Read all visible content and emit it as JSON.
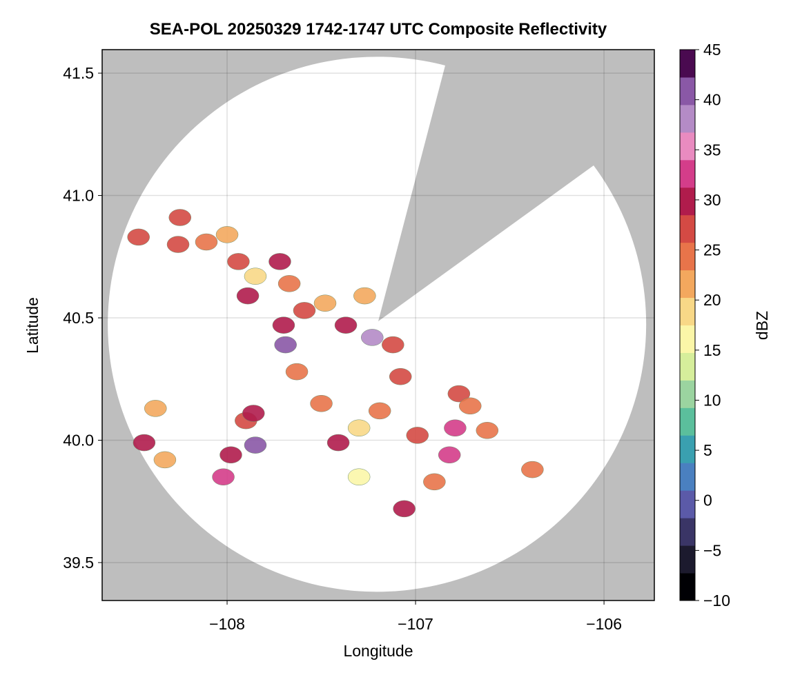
{
  "chart_data": {
    "type": "radar",
    "title": "SEA-POL 20250329 1742-1747 UTC Composite Reflectivity",
    "x_label": "Longitude",
    "y_label": "Latitude",
    "colorbar_label": "dBZ",
    "xlim": [
      -108.663,
      -105.733
    ],
    "ylim": [
      39.345,
      41.596
    ],
    "xticks": [
      {
        "value": -108,
        "label": "−108"
      },
      {
        "value": -107,
        "label": "−107"
      },
      {
        "value": -106,
        "label": "−106"
      }
    ],
    "yticks": [
      39.5,
      {
        "value": 40,
        "label": "40.0"
      },
      40.5,
      {
        "value": 41,
        "label": "41.0"
      },
      41.5
    ],
    "clim": [
      -10,
      45
    ],
    "cticks": [
      {
        "value": -10,
        "label": "−10"
      },
      {
        "value": -5,
        "label": "−5"
      },
      0,
      5,
      10,
      15,
      20,
      25,
      30,
      35,
      40,
      45
    ],
    "grid": true,
    "background": "#bebebe",
    "coverage_color": "#ffffff",
    "colormap": [
      "#000004",
      "#1c1a2e",
      "#3a3566",
      "#5b5aa8",
      "#4a80c0",
      "#3aa0b0",
      "#5bbf9c",
      "#9bd4a0",
      "#d6ee9b",
      "#fbf6a8",
      "#f8d887",
      "#f3a85e",
      "#e8744a",
      "#d44a44",
      "#b01c4c",
      "#d43d8a",
      "#e98bc0",
      "#b48bc6",
      "#8a58a6",
      "#4a0a50"
    ],
    "cells": {
      "x": [
        -108.47,
        -108.25,
        -108.26,
        -108.11,
        -108.0,
        -107.94,
        -107.85,
        -107.89,
        -107.72,
        -107.67,
        -107.7,
        -107.69,
        -107.59,
        -107.48,
        -107.37,
        -107.23,
        -107.12,
        -107.27,
        -107.63,
        -107.5,
        -107.19,
        -107.3,
        -107.41,
        -107.9,
        -107.85,
        -107.98,
        -108.02,
        -107.86,
        -108.38,
        -108.44,
        -108.33,
        -106.77,
        -106.71,
        -106.79,
        -106.62,
        -106.82,
        -106.99,
        -107.06,
        -106.38,
        -106.9,
        -107.08,
        -107.3
      ],
      "y": [
        40.83,
        40.91,
        40.8,
        40.81,
        40.84,
        40.73,
        40.67,
        40.59,
        40.73,
        40.64,
        40.47,
        40.39,
        40.53,
        40.56,
        40.47,
        40.42,
        40.39,
        40.59,
        40.28,
        40.15,
        40.12,
        40.05,
        39.99,
        40.08,
        39.98,
        39.94,
        39.85,
        40.11,
        40.13,
        39.99,
        39.92,
        40.19,
        40.14,
        40.05,
        40.04,
        39.94,
        40.02,
        39.72,
        39.88,
        39.83,
        40.26,
        39.85
      ],
      "values": [
        28,
        27,
        28,
        25,
        22,
        28,
        18,
        30,
        31,
        25,
        31,
        40,
        28,
        22,
        30,
        38,
        28,
        22,
        25,
        25,
        25,
        20,
        31,
        28,
        40,
        29,
        33,
        30,
        22,
        30,
        22,
        28,
        25,
        33,
        25,
        33,
        28,
        31,
        25,
        25,
        26,
        17
      ]
    }
  }
}
